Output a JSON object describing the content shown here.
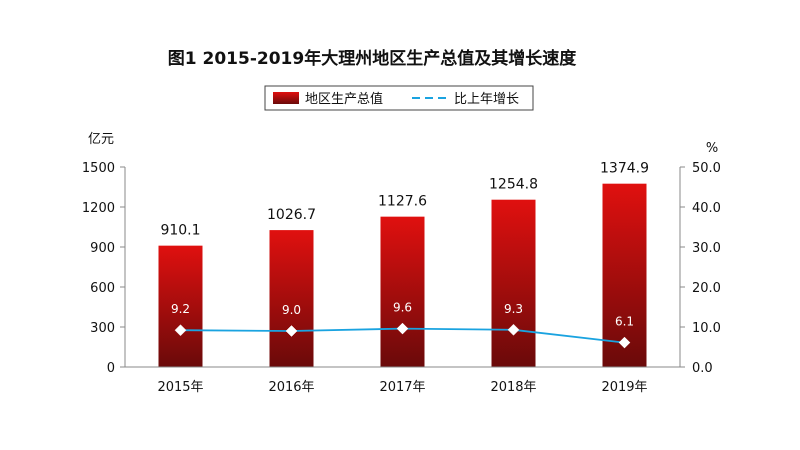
{
  "chart_data": {
    "type": "bar",
    "title": "图1  2015-2019年大理州地区生产总值及其增长速度",
    "categories": [
      "2015年",
      "2016年",
      "2017年",
      "2018年",
      "2019年"
    ],
    "series": [
      {
        "name": "地区生产总值",
        "type": "bar",
        "axis": "left",
        "values": [
          910.1,
          1026.7,
          1127.6,
          1254.8,
          1374.9
        ],
        "labels": [
          "910.1",
          "1026.7",
          "1127.6",
          "1254.8",
          "1374.9"
        ]
      },
      {
        "name": "比上年增长",
        "type": "line",
        "axis": "right",
        "values": [
          9.2,
          9.0,
          9.6,
          9.3,
          6.1
        ],
        "labels": [
          "9.2",
          "9.0",
          "9.6",
          "9.3",
          "6.1"
        ]
      }
    ],
    "y_left": {
      "unit": "亿元",
      "ylim": [
        0,
        1500
      ],
      "ticks": [
        "0",
        "300",
        "600",
        "900",
        "1200",
        "1500"
      ]
    },
    "y_right": {
      "unit": "%",
      "ylim": [
        0,
        50
      ],
      "ticks": [
        "0.0",
        "10.0",
        "20.0",
        "30.0",
        "40.0",
        "50.0"
      ]
    },
    "legend_position": "top-center",
    "colors": {
      "bar_top": "#e0100f",
      "bar_bottom": "#6a0a0a",
      "line": "#1aa3e0",
      "marker": "#ffffff"
    }
  }
}
